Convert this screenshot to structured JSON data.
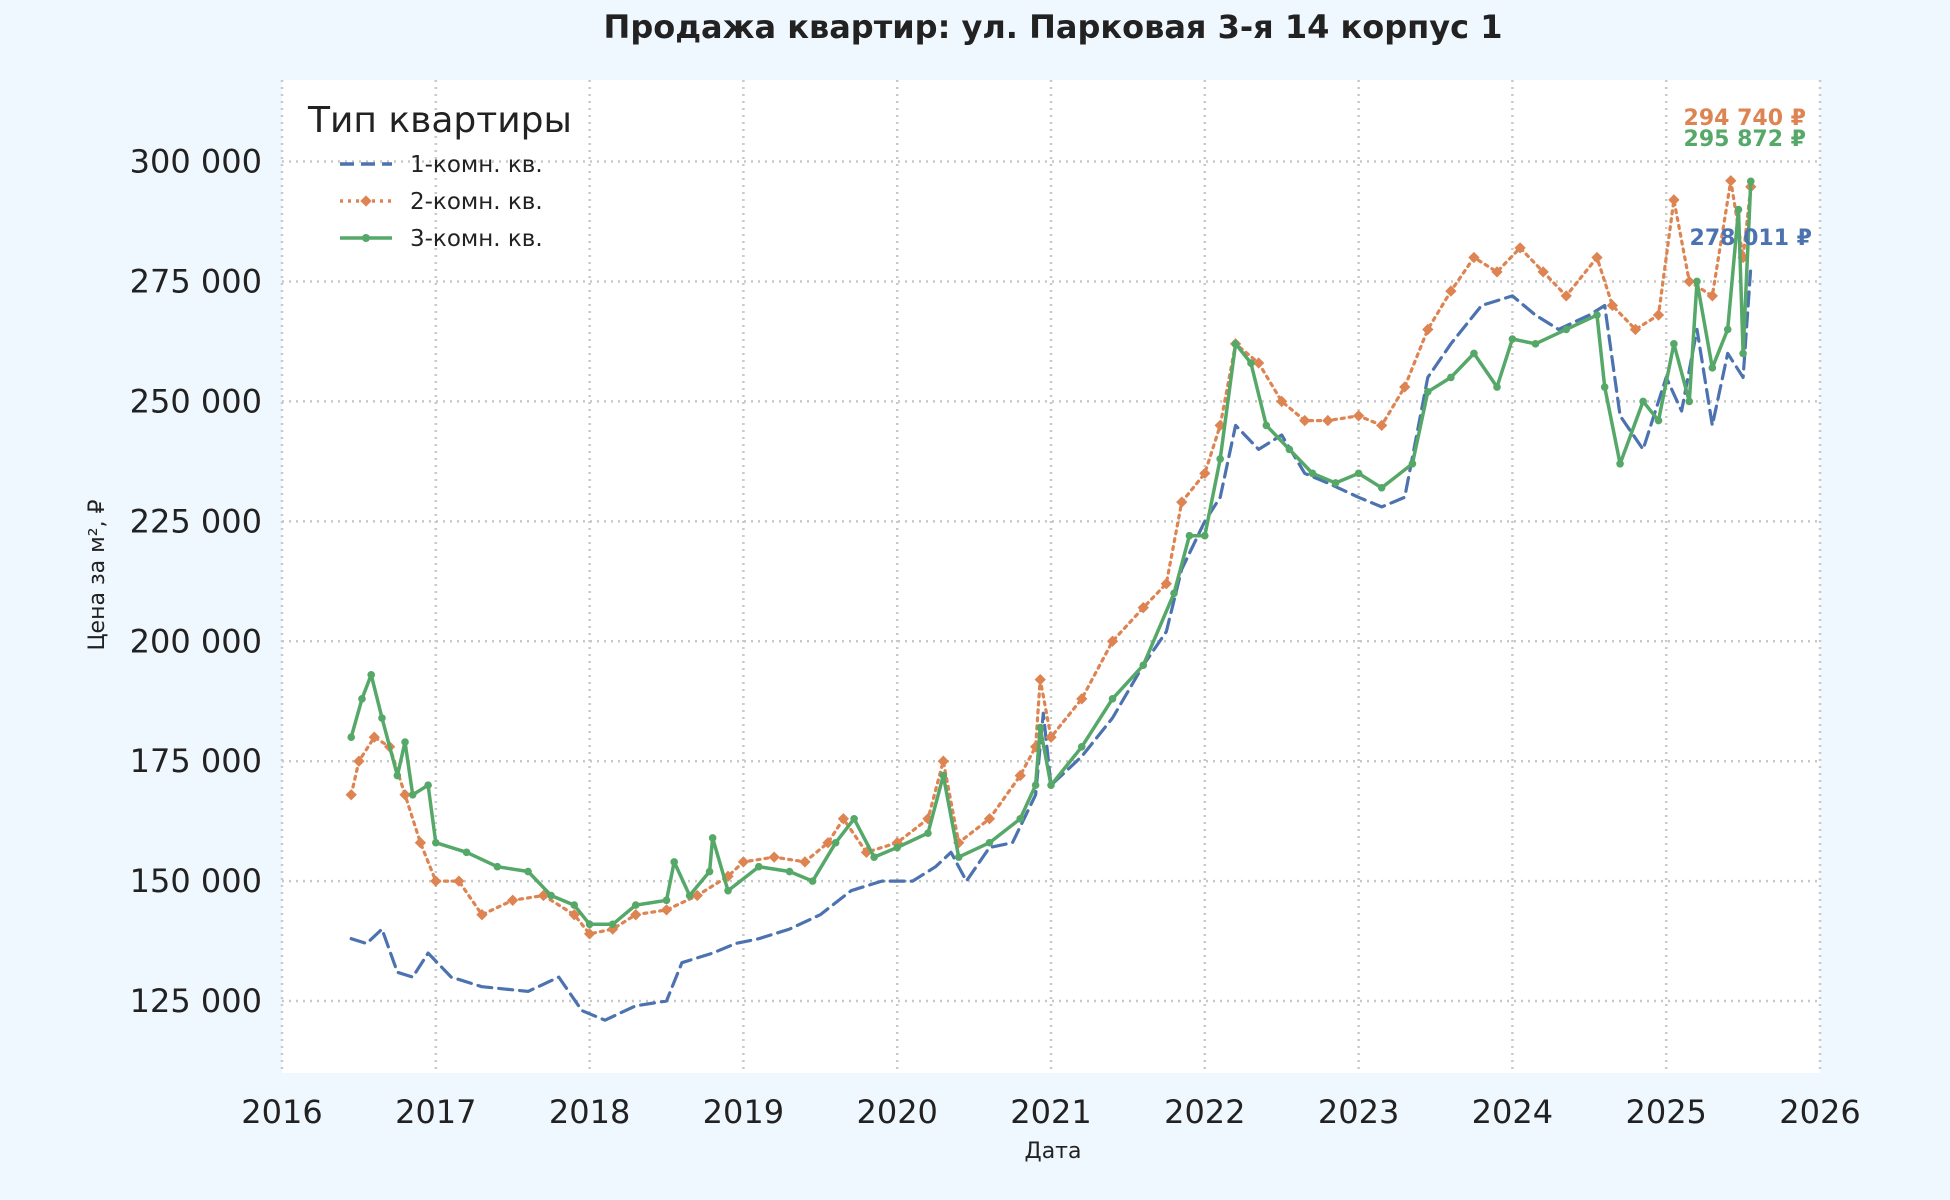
{
  "chart_data": {
    "type": "line",
    "title": "Продажа квартир: ул. Парковая 3-я 14 корпус 1",
    "xlabel": "Дата",
    "ylabel": "Цена за м², ₽",
    "xlim": [
      2016,
      2026
    ],
    "ylim": [
      110000,
      317000
    ],
    "x_ticks": [
      2016,
      2017,
      2018,
      2019,
      2020,
      2021,
      2022,
      2023,
      2024,
      2025,
      2026
    ],
    "y_ticks": [
      125000,
      150000,
      175000,
      200000,
      225000,
      250000,
      275000,
      300000
    ],
    "y_tick_labels": [
      "125 000",
      "150 000",
      "175 000",
      "200 000",
      "225 000",
      "250 000",
      "275 000",
      "300 000"
    ],
    "grid": true,
    "legend": {
      "title": "Тип квартиры",
      "placement": "top-left"
    },
    "series": [
      {
        "name": "1-комн. кв.",
        "color": "#4c72b0",
        "style": "dashed",
        "last_label": "278 011 ₽",
        "points": [
          [
            2016.45,
            138000
          ],
          [
            2016.55,
            137000
          ],
          [
            2016.65,
            140000
          ],
          [
            2016.75,
            131000
          ],
          [
            2016.85,
            130000
          ],
          [
            2016.95,
            135000
          ],
          [
            2017.1,
            130000
          ],
          [
            2017.3,
            128000
          ],
          [
            2017.6,
            127000
          ],
          [
            2017.8,
            130000
          ],
          [
            2017.95,
            123000
          ],
          [
            2018.1,
            121000
          ],
          [
            2018.3,
            124000
          ],
          [
            2018.5,
            125000
          ],
          [
            2018.6,
            133000
          ],
          [
            2018.8,
            135000
          ],
          [
            2018.95,
            137000
          ],
          [
            2019.1,
            138000
          ],
          [
            2019.3,
            140000
          ],
          [
            2019.5,
            143000
          ],
          [
            2019.7,
            148000
          ],
          [
            2019.9,
            150000
          ],
          [
            2020.1,
            150000
          ],
          [
            2020.25,
            153000
          ],
          [
            2020.35,
            156000
          ],
          [
            2020.45,
            150000
          ],
          [
            2020.6,
            157000
          ],
          [
            2020.75,
            158000
          ],
          [
            2020.9,
            168000
          ],
          [
            2020.95,
            185000
          ],
          [
            2021.0,
            170000
          ],
          [
            2021.2,
            176000
          ],
          [
            2021.4,
            184000
          ],
          [
            2021.6,
            195000
          ],
          [
            2021.75,
            202000
          ],
          [
            2021.85,
            215000
          ],
          [
            2022.0,
            225000
          ],
          [
            2022.1,
            230000
          ],
          [
            2022.2,
            245000
          ],
          [
            2022.35,
            240000
          ],
          [
            2022.5,
            243000
          ],
          [
            2022.65,
            235000
          ],
          [
            2022.8,
            233000
          ],
          [
            2023.0,
            230000
          ],
          [
            2023.15,
            228000
          ],
          [
            2023.3,
            230000
          ],
          [
            2023.45,
            255000
          ],
          [
            2023.6,
            262000
          ],
          [
            2023.8,
            270000
          ],
          [
            2024.0,
            272000
          ],
          [
            2024.15,
            268000
          ],
          [
            2024.3,
            265000
          ],
          [
            2024.5,
            268000
          ],
          [
            2024.6,
            270000
          ],
          [
            2024.7,
            247000
          ],
          [
            2024.85,
            240000
          ],
          [
            2025.0,
            255000
          ],
          [
            2025.1,
            248000
          ],
          [
            2025.2,
            265000
          ],
          [
            2025.3,
            245000
          ],
          [
            2025.4,
            260000
          ],
          [
            2025.5,
            255000
          ],
          [
            2025.55,
            278011
          ]
        ]
      },
      {
        "name": "2-комн. кв.",
        "color": "#dd8452",
        "style": "dotted",
        "last_label": "294 740 ₽",
        "points": [
          [
            2016.45,
            168000
          ],
          [
            2016.5,
            175000
          ],
          [
            2016.6,
            180000
          ],
          [
            2016.7,
            178000
          ],
          [
            2016.8,
            168000
          ],
          [
            2016.9,
            158000
          ],
          [
            2017.0,
            150000
          ],
          [
            2017.15,
            150000
          ],
          [
            2017.3,
            143000
          ],
          [
            2017.5,
            146000
          ],
          [
            2017.7,
            147000
          ],
          [
            2017.9,
            143000
          ],
          [
            2018.0,
            139000
          ],
          [
            2018.15,
            140000
          ],
          [
            2018.3,
            143000
          ],
          [
            2018.5,
            144000
          ],
          [
            2018.7,
            147000
          ],
          [
            2018.9,
            151000
          ],
          [
            2019.0,
            154000
          ],
          [
            2019.2,
            155000
          ],
          [
            2019.4,
            154000
          ],
          [
            2019.55,
            158000
          ],
          [
            2019.65,
            163000
          ],
          [
            2019.8,
            156000
          ],
          [
            2020.0,
            158000
          ],
          [
            2020.2,
            163000
          ],
          [
            2020.3,
            175000
          ],
          [
            2020.4,
            158000
          ],
          [
            2020.6,
            163000
          ],
          [
            2020.8,
            172000
          ],
          [
            2020.9,
            178000
          ],
          [
            2020.93,
            192000
          ],
          [
            2021.0,
            180000
          ],
          [
            2021.2,
            188000
          ],
          [
            2021.4,
            200000
          ],
          [
            2021.6,
            207000
          ],
          [
            2021.75,
            212000
          ],
          [
            2021.85,
            229000
          ],
          [
            2022.0,
            235000
          ],
          [
            2022.1,
            245000
          ],
          [
            2022.2,
            262000
          ],
          [
            2022.35,
            258000
          ],
          [
            2022.5,
            250000
          ],
          [
            2022.65,
            246000
          ],
          [
            2022.8,
            246000
          ],
          [
            2023.0,
            247000
          ],
          [
            2023.15,
            245000
          ],
          [
            2023.3,
            253000
          ],
          [
            2023.45,
            265000
          ],
          [
            2023.6,
            273000
          ],
          [
            2023.75,
            280000
          ],
          [
            2023.9,
            277000
          ],
          [
            2024.05,
            282000
          ],
          [
            2024.2,
            277000
          ],
          [
            2024.35,
            272000
          ],
          [
            2024.55,
            280000
          ],
          [
            2024.65,
            270000
          ],
          [
            2024.8,
            265000
          ],
          [
            2024.95,
            268000
          ],
          [
            2025.05,
            292000
          ],
          [
            2025.15,
            275000
          ],
          [
            2025.3,
            272000
          ],
          [
            2025.42,
            296000
          ],
          [
            2025.5,
            280000
          ],
          [
            2025.55,
            294740
          ]
        ]
      },
      {
        "name": "3-комн. кв.",
        "color": "#55a868",
        "style": "solid",
        "last_label": "295 872 ₽",
        "points": [
          [
            2016.45,
            180000
          ],
          [
            2016.52,
            188000
          ],
          [
            2016.58,
            193000
          ],
          [
            2016.65,
            184000
          ],
          [
            2016.75,
            172000
          ],
          [
            2016.8,
            179000
          ],
          [
            2016.85,
            168000
          ],
          [
            2016.95,
            170000
          ],
          [
            2017.0,
            158000
          ],
          [
            2017.2,
            156000
          ],
          [
            2017.4,
            153000
          ],
          [
            2017.6,
            152000
          ],
          [
            2017.75,
            147000
          ],
          [
            2017.9,
            145000
          ],
          [
            2018.0,
            141000
          ],
          [
            2018.15,
            141000
          ],
          [
            2018.3,
            145000
          ],
          [
            2018.5,
            146000
          ],
          [
            2018.55,
            154000
          ],
          [
            2018.65,
            147000
          ],
          [
            2018.78,
            152000
          ],
          [
            2018.8,
            159000
          ],
          [
            2018.9,
            148000
          ],
          [
            2019.1,
            153000
          ],
          [
            2019.3,
            152000
          ],
          [
            2019.45,
            150000
          ],
          [
            2019.6,
            158000
          ],
          [
            2019.72,
            163000
          ],
          [
            2019.85,
            155000
          ],
          [
            2020.0,
            157000
          ],
          [
            2020.2,
            160000
          ],
          [
            2020.3,
            172000
          ],
          [
            2020.4,
            155000
          ],
          [
            2020.6,
            158000
          ],
          [
            2020.8,
            163000
          ],
          [
            2020.9,
            170000
          ],
          [
            2020.93,
            182000
          ],
          [
            2021.0,
            170000
          ],
          [
            2021.2,
            178000
          ],
          [
            2021.4,
            188000
          ],
          [
            2021.6,
            195000
          ],
          [
            2021.8,
            210000
          ],
          [
            2021.9,
            222000
          ],
          [
            2022.0,
            222000
          ],
          [
            2022.1,
            238000
          ],
          [
            2022.2,
            262000
          ],
          [
            2022.3,
            258000
          ],
          [
            2022.4,
            245000
          ],
          [
            2022.55,
            240000
          ],
          [
            2022.7,
            235000
          ],
          [
            2022.85,
            233000
          ],
          [
            2023.0,
            235000
          ],
          [
            2023.15,
            232000
          ],
          [
            2023.35,
            237000
          ],
          [
            2023.45,
            252000
          ],
          [
            2023.6,
            255000
          ],
          [
            2023.75,
            260000
          ],
          [
            2023.9,
            253000
          ],
          [
            2024.0,
            263000
          ],
          [
            2024.15,
            262000
          ],
          [
            2024.35,
            265000
          ],
          [
            2024.55,
            268000
          ],
          [
            2024.6,
            253000
          ],
          [
            2024.7,
            237000
          ],
          [
            2024.85,
            250000
          ],
          [
            2024.95,
            246000
          ],
          [
            2025.05,
            262000
          ],
          [
            2025.15,
            250000
          ],
          [
            2025.2,
            275000
          ],
          [
            2025.3,
            257000
          ],
          [
            2025.4,
            265000
          ],
          [
            2025.47,
            290000
          ],
          [
            2025.5,
            260000
          ],
          [
            2025.55,
            295872
          ]
        ]
      }
    ]
  }
}
